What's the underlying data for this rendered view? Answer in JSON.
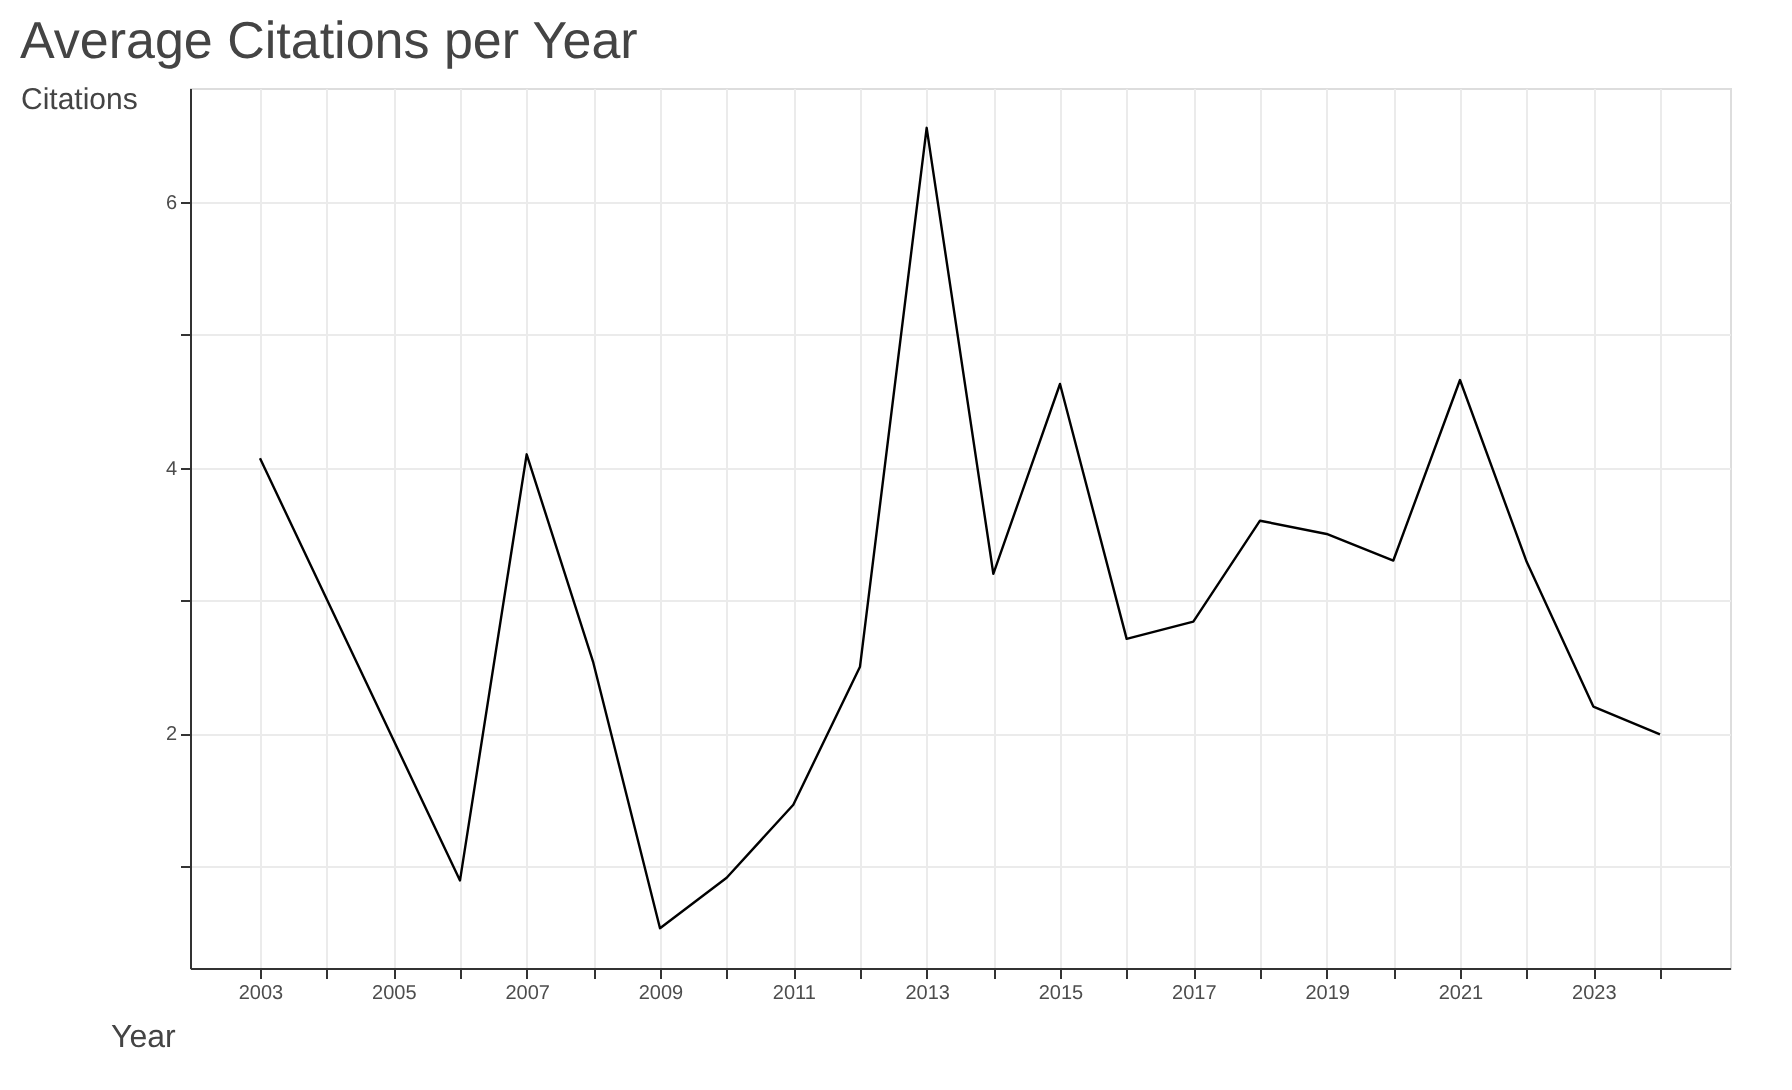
{
  "chart_data": {
    "type": "line",
    "title": "Average Citations per Year",
    "xlabel": "Year",
    "ylabel": "Citations",
    "x": [
      2003,
      2006,
      2007,
      2008,
      2009,
      2010,
      2011,
      2012,
      2013,
      2014,
      2015,
      2016,
      2017,
      2018,
      2019,
      2020,
      2021,
      2022,
      2023,
      2024
    ],
    "series": [
      {
        "color": "#000000",
        "values": [
          4.07,
          0.89,
          4.1,
          2.53,
          0.53,
          0.91,
          1.46,
          2.5,
          6.56,
          3.2,
          4.63,
          2.71,
          2.84,
          3.6,
          3.5,
          3.3,
          4.66,
          3.29,
          2.2,
          1.99
        ]
      }
    ],
    "xlim": [
      2001.95,
      2025.05
    ],
    "ylim": [
      0.23,
      6.86
    ],
    "xticks": [
      2003,
      {
        "value": 2004,
        "label": null
      },
      2005,
      {
        "value": 2006,
        "label": null
      },
      2007,
      {
        "value": 2008,
        "label": null
      },
      2009,
      {
        "value": 2010,
        "label": null
      },
      2011,
      {
        "value": 2012,
        "label": null
      },
      2013,
      {
        "value": 2014,
        "label": null
      },
      2015,
      {
        "value": 2016,
        "label": null
      },
      2017,
      {
        "value": 2018,
        "label": null
      },
      2019,
      {
        "value": 2020,
        "label": null
      },
      2021,
      {
        "value": 2022,
        "label": null
      },
      2023,
      {
        "value": 2024,
        "label": null
      }
    ],
    "yticks": [
      {
        "value": 1,
        "label": null
      },
      2,
      {
        "value": 3,
        "label": null
      },
      4,
      {
        "value": 5,
        "label": null
      },
      6
    ],
    "grid": true,
    "marker": "none",
    "line_style": "solid"
  }
}
